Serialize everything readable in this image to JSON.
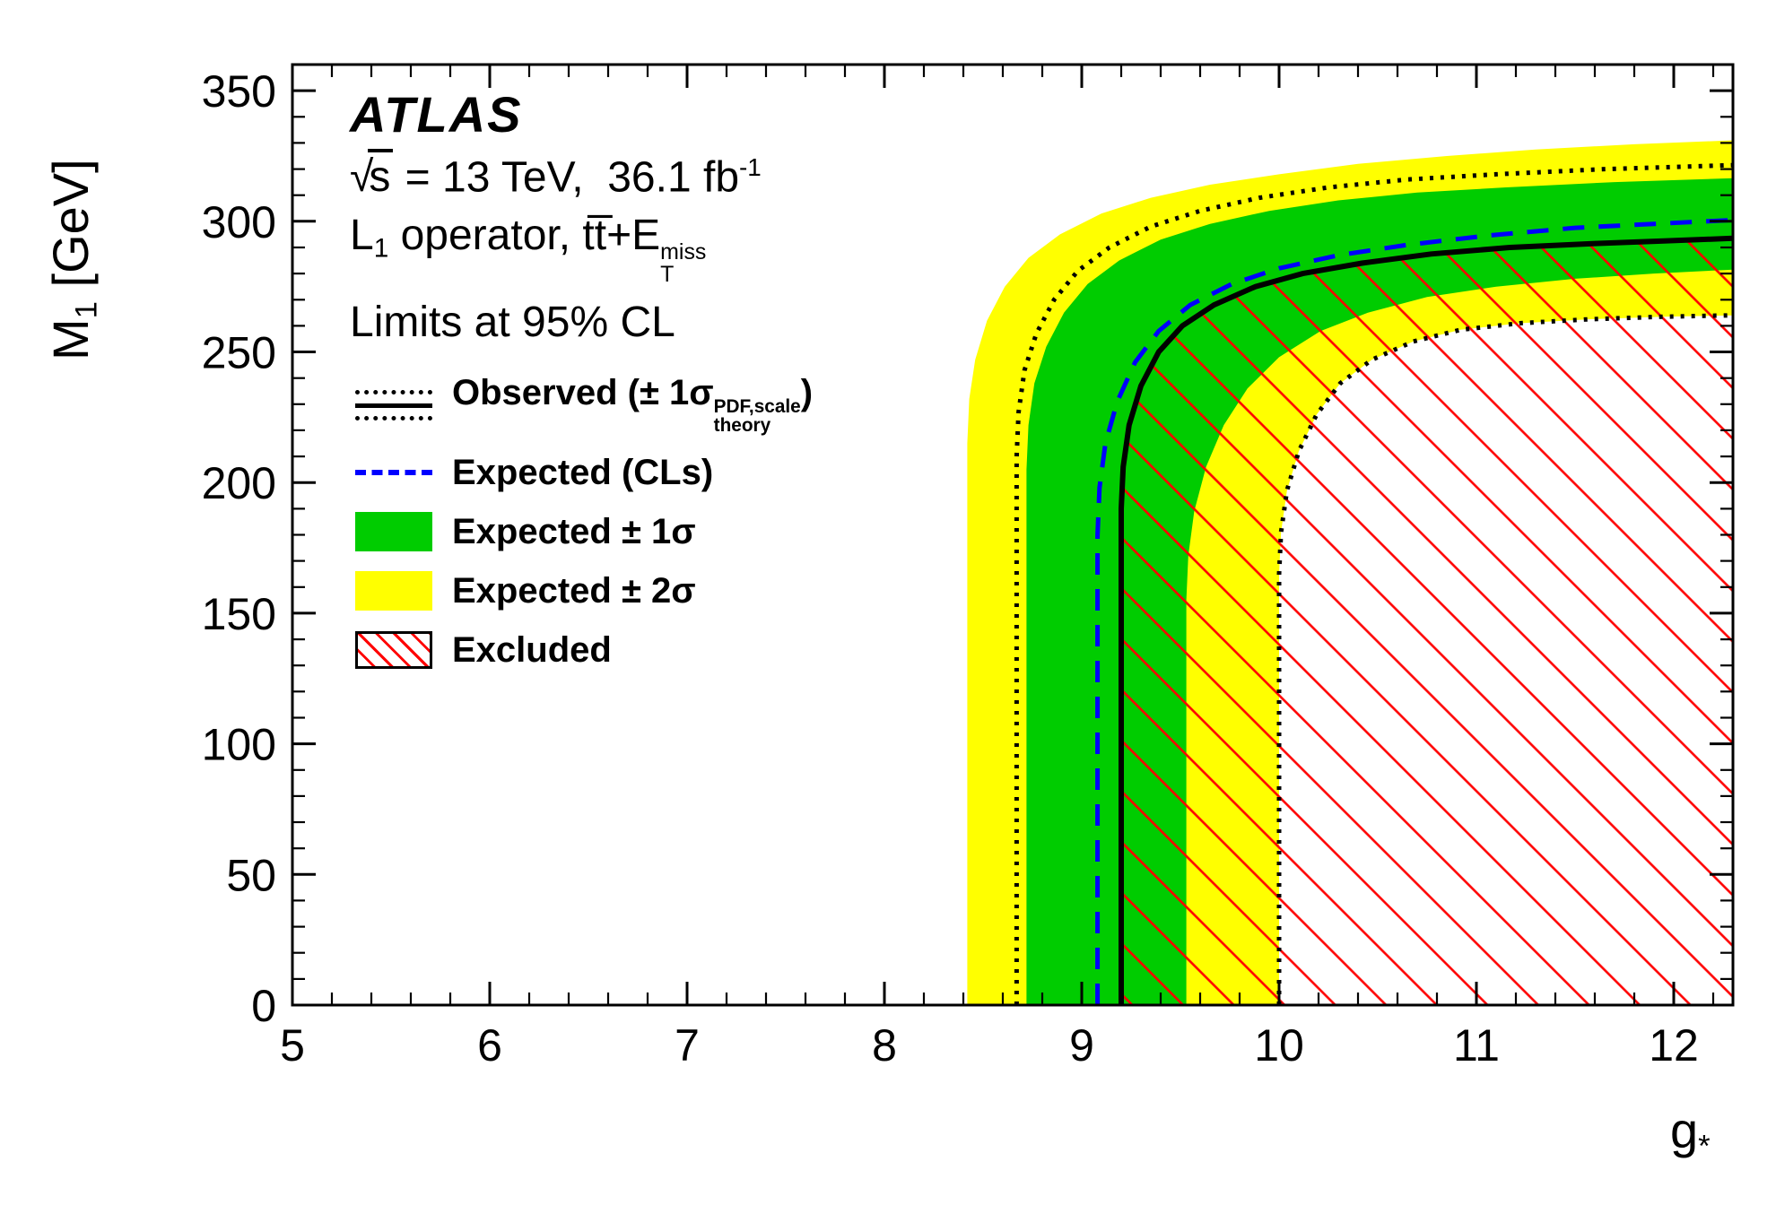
{
  "colors": {
    "band_1sigma": "#00cc00",
    "band_2sigma": "#ffff00",
    "expected_line": "#0000ff",
    "observed_line": "#000000",
    "theory_dotted_line": "#000000",
    "excluded_hatch": "#ff0000",
    "frame": "#000000",
    "background": "#ffffff"
  },
  "header": {
    "experiment": "ATLAS",
    "energy_lumi": {
      "sqrt": "√",
      "s": "s",
      "rest": " = 13 TeV,  36.1 fb",
      "sup": "-1"
    },
    "process": {
      "p1": "L",
      "sub1": "1",
      "p2": " operator, tt̅+E",
      "sup": "miss",
      "sub": "T"
    },
    "limits": "Limits at 95% CL"
  },
  "legend": {
    "observed": {
      "pre": "Observed (± 1σ",
      "sup": "PDF,scale",
      "sub": "theory",
      "post": ")"
    },
    "expected": "Expected (CLs)",
    "expected_1sigma": "Expected ± 1σ",
    "expected_2sigma": "Expected ± 2σ",
    "excluded": "Excluded"
  },
  "axes": {
    "y_label": {
      "main": "M",
      "sub": "1",
      "rest": " [GeV]"
    },
    "x_label": {
      "main": "g",
      "sub": "*"
    }
  },
  "chart_data": {
    "type": "area",
    "title": "L1 operator, ttbar+ETmiss — Limits at 95% CL",
    "subtitle": "ATLAS √s = 13 TeV, 36.1 fb-1",
    "xlabel": "g*",
    "ylabel": "M1 [GeV]",
    "x_range": [
      5,
      12.3
    ],
    "y_range": [
      0,
      360
    ],
    "x_ticks": [
      5,
      6,
      7,
      8,
      9,
      10,
      11,
      12
    ],
    "y_ticks": [
      0,
      50,
      100,
      150,
      200,
      250,
      300,
      350
    ],
    "x_minor_step": 0.2,
    "y_minor_step": 10,
    "grid": false,
    "legend_position": "top-left-inside",
    "series": [
      {
        "name": "expected-2sigma-band",
        "kind": "band",
        "color": "#ffff00",
        "upper": [
          [
            8.42,
            0
          ],
          [
            8.42,
            215
          ],
          [
            8.43,
            232
          ],
          [
            8.46,
            247
          ],
          [
            8.52,
            262
          ],
          [
            8.61,
            275
          ],
          [
            8.73,
            286
          ],
          [
            8.89,
            295
          ],
          [
            9.1,
            303
          ],
          [
            9.35,
            309
          ],
          [
            9.65,
            314
          ],
          [
            10.0,
            318
          ],
          [
            10.4,
            322
          ],
          [
            10.85,
            325
          ],
          [
            11.3,
            327.5
          ],
          [
            11.8,
            329.5
          ],
          [
            12.3,
            331
          ]
        ],
        "lower": [
          [
            10.0,
            0
          ],
          [
            10.0,
            165
          ],
          [
            10.01,
            181
          ],
          [
            10.04,
            197
          ],
          [
            10.1,
            212
          ],
          [
            10.19,
            226
          ],
          [
            10.31,
            238
          ],
          [
            10.47,
            247
          ],
          [
            10.68,
            254
          ],
          [
            10.92,
            258.5
          ],
          [
            11.22,
            261
          ],
          [
            11.57,
            262.5
          ],
          [
            11.95,
            263.5
          ],
          [
            12.3,
            264
          ]
        ]
      },
      {
        "name": "expected-1sigma-band",
        "kind": "band",
        "color": "#00cc00",
        "upper": [
          [
            8.72,
            0
          ],
          [
            8.72,
            205
          ],
          [
            8.73,
            222
          ],
          [
            8.76,
            238
          ],
          [
            8.82,
            252
          ],
          [
            8.91,
            265
          ],
          [
            9.03,
            276
          ],
          [
            9.19,
            285
          ],
          [
            9.4,
            293
          ],
          [
            9.65,
            299
          ],
          [
            9.95,
            304
          ],
          [
            10.3,
            308
          ],
          [
            10.7,
            311
          ],
          [
            11.15,
            313
          ],
          [
            11.7,
            315
          ],
          [
            12.3,
            316.5
          ]
        ],
        "lower": [
          [
            9.53,
            0
          ],
          [
            9.53,
            155
          ],
          [
            9.54,
            172
          ],
          [
            9.57,
            189
          ],
          [
            9.63,
            206
          ],
          [
            9.72,
            222
          ],
          [
            9.84,
            236
          ],
          [
            10.0,
            248
          ],
          [
            10.21,
            258
          ],
          [
            10.45,
            265
          ],
          [
            10.75,
            271
          ],
          [
            11.1,
            275
          ],
          [
            11.5,
            278
          ],
          [
            11.9,
            280
          ],
          [
            12.3,
            281.5
          ]
        ]
      },
      {
        "name": "excluded-region",
        "kind": "hatch",
        "points": [
          [
            9.2,
            0
          ],
          [
            9.2,
            190
          ],
          [
            9.21,
            206
          ],
          [
            9.24,
            222
          ],
          [
            9.3,
            237
          ],
          [
            9.39,
            250
          ],
          [
            9.51,
            260
          ],
          [
            9.67,
            268
          ],
          [
            9.88,
            275
          ],
          [
            10.12,
            280
          ],
          [
            10.42,
            284
          ],
          [
            10.77,
            287.5
          ],
          [
            11.17,
            290
          ],
          [
            11.6,
            291.5
          ],
          [
            11.95,
            292.5
          ],
          [
            12.3,
            293.5
          ],
          [
            12.3,
            0
          ]
        ]
      },
      {
        "name": "observed-plus-1sigma-theory",
        "kind": "line",
        "style": "dotted",
        "color": "#000000",
        "points": [
          [
            8.67,
            0
          ],
          [
            8.67,
            210
          ],
          [
            8.68,
            227
          ],
          [
            8.71,
            243
          ],
          [
            8.77,
            257
          ],
          [
            8.86,
            270
          ],
          [
            8.98,
            281
          ],
          [
            9.14,
            290
          ],
          [
            9.35,
            298
          ],
          [
            9.6,
            304
          ],
          [
            9.9,
            309
          ],
          [
            10.25,
            313
          ],
          [
            10.65,
            316
          ],
          [
            11.1,
            318
          ],
          [
            11.65,
            320
          ],
          [
            12.3,
            321.5
          ]
        ]
      },
      {
        "name": "observed-minus-1sigma-theory",
        "kind": "line",
        "style": "dotted",
        "color": "#000000",
        "points": [
          [
            10.0,
            0
          ],
          [
            10.0,
            165
          ],
          [
            10.01,
            181
          ],
          [
            10.04,
            197
          ],
          [
            10.1,
            212
          ],
          [
            10.19,
            226
          ],
          [
            10.31,
            238
          ],
          [
            10.47,
            247
          ],
          [
            10.68,
            254
          ],
          [
            10.92,
            258.5
          ],
          [
            11.22,
            261
          ],
          [
            11.57,
            262.5
          ],
          [
            11.95,
            263.5
          ],
          [
            12.3,
            264
          ]
        ]
      },
      {
        "name": "expected-cls",
        "kind": "line",
        "style": "dashed",
        "color": "#0000ff",
        "points": [
          [
            9.08,
            0
          ],
          [
            9.08,
            180
          ],
          [
            9.09,
            198
          ],
          [
            9.12,
            215
          ],
          [
            9.18,
            231
          ],
          [
            9.27,
            246
          ],
          [
            9.39,
            258
          ],
          [
            9.55,
            268
          ],
          [
            9.76,
            276
          ],
          [
            10.0,
            282
          ],
          [
            10.3,
            287
          ],
          [
            10.65,
            291
          ],
          [
            11.05,
            294.5
          ],
          [
            11.5,
            297.5
          ],
          [
            11.9,
            299
          ],
          [
            12.3,
            300.5
          ]
        ]
      },
      {
        "name": "observed",
        "kind": "line",
        "style": "solid",
        "color": "#000000",
        "points": [
          [
            9.2,
            0
          ],
          [
            9.2,
            190
          ],
          [
            9.21,
            206
          ],
          [
            9.24,
            222
          ],
          [
            9.3,
            237
          ],
          [
            9.39,
            250
          ],
          [
            9.51,
            260
          ],
          [
            9.67,
            268
          ],
          [
            9.88,
            275
          ],
          [
            10.12,
            280
          ],
          [
            10.42,
            284
          ],
          [
            10.77,
            287.5
          ],
          [
            11.17,
            290
          ],
          [
            11.6,
            291.5
          ],
          [
            11.95,
            292.5
          ],
          [
            12.3,
            293.5
          ]
        ]
      }
    ]
  }
}
